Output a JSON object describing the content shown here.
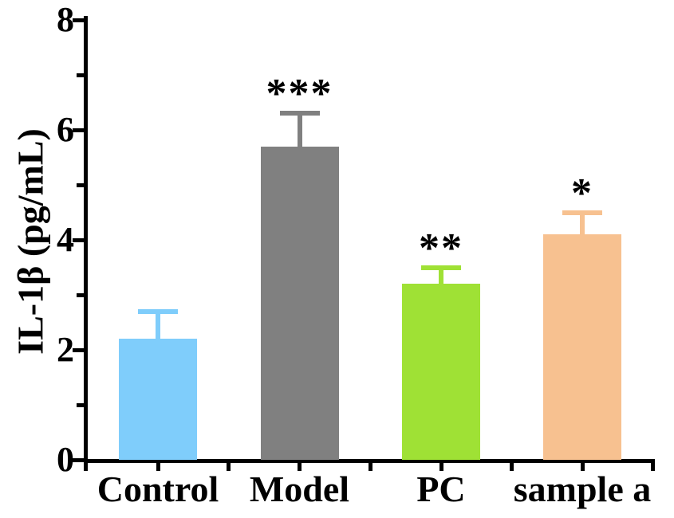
{
  "chart_data": {
    "type": "bar",
    "title": "",
    "ylabel": "IL-1β (pg/mL)",
    "xlabel": "",
    "categories": [
      "Control",
      "Model",
      "PC",
      "sample a"
    ],
    "values": [
      2.2,
      5.7,
      3.2,
      4.1
    ],
    "errors": [
      0.5,
      0.6,
      0.3,
      0.4
    ],
    "error_tops": [
      2.7,
      6.3,
      3.5,
      4.5
    ],
    "significance": [
      "",
      "***",
      "**",
      "*"
    ],
    "bar_colors": [
      "#7FCDFB",
      "#808080",
      "#9FE135",
      "#F7C190"
    ],
    "error_bar_colors": [
      "#7FCDFB",
      "#808080",
      "#9FE135",
      "#F7C190"
    ],
    "significance_color": "#000000",
    "axis_color": "#000000",
    "ylim": [
      0,
      8
    ],
    "yticks_major": [
      0,
      2,
      4,
      6,
      8
    ],
    "yticks_minor": [
      1,
      3,
      5,
      7
    ],
    "ytick_labels": [
      "0",
      "2",
      "4",
      "6",
      "8"
    ],
    "grid": false,
    "legend": "none",
    "background": "#ffffff"
  }
}
